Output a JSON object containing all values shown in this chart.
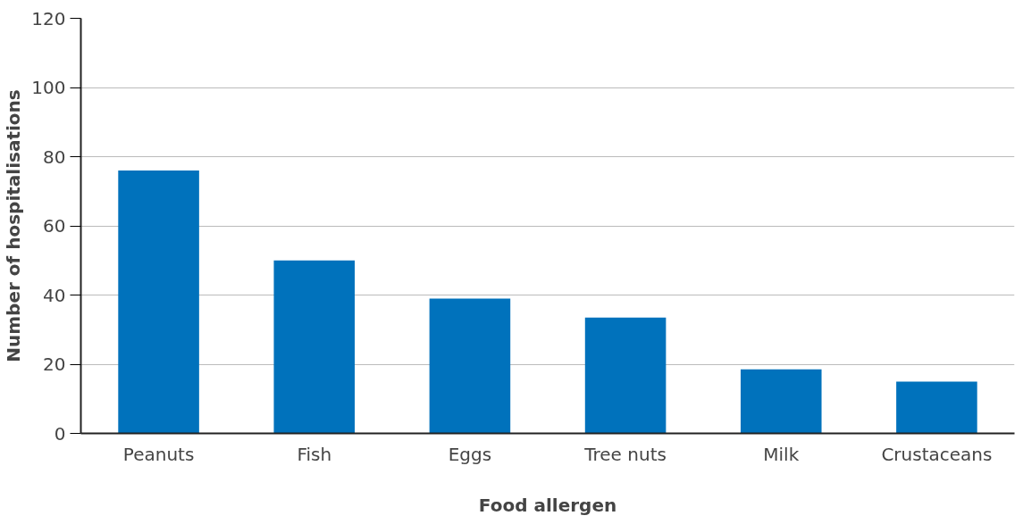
{
  "chart_data": {
    "type": "bar",
    "xlabel": "Food allergen",
    "ylabel": "Number of hospitalisations",
    "categories": [
      "Peanuts",
      "Fish",
      "Eggs",
      "Tree nuts",
      "Milk",
      "Crustaceans"
    ],
    "values": [
      76,
      50,
      39,
      33.5,
      18.5,
      15
    ],
    "color": "#0072bc",
    "ylim": [
      0,
      120
    ],
    "yticks": [
      0,
      20,
      40,
      60,
      80,
      100,
      120
    ],
    "grid": "y"
  }
}
